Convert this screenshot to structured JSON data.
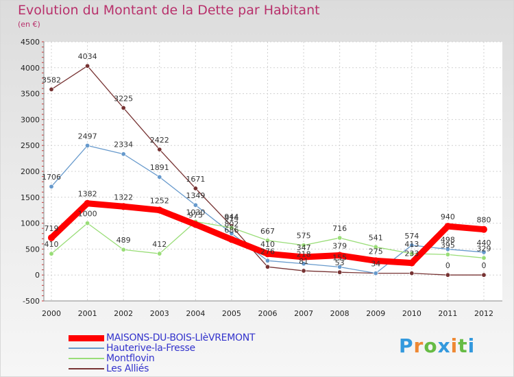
{
  "header": {
    "title": "Evolution du Montant de la Dette par Habitant",
    "subtitle": "(en €)"
  },
  "brand": {
    "name": "Proxiti"
  },
  "colors": {
    "title": "#b8306b",
    "legend_text": "#3333cc",
    "maisons": "#ff0000",
    "hauterive": "#6699cc",
    "montflovin": "#99dd77",
    "allies": "#773333"
  },
  "chart_data": {
    "type": "line",
    "title": "Evolution du Montant de la Dette par Habitant",
    "subtitle": "(en €)",
    "xlabel": "",
    "ylabel": "",
    "x": [
      "2000",
      "2001",
      "2002",
      "2003",
      "2004",
      "2005",
      "2006",
      "2007",
      "2008",
      "2009",
      "2010",
      "2011",
      "2012"
    ],
    "ylim": [
      -500,
      4500
    ],
    "yticks": [
      "-500",
      "0",
      "500",
      "1000",
      "1500",
      "2000",
      "2500",
      "3000",
      "3500",
      "4000",
      "4500"
    ],
    "grid": true,
    "legend_position": "bottom-left",
    "series": [
      {
        "name": "MAISONS-DU-BOIS-LIèVREMONT",
        "color": "#ff0000",
        "values": [
          719,
          1382,
          1322,
          1252,
          975,
          686,
          410,
          347,
          379,
          275,
          233,
          940,
          880
        ],
        "labels": [
          "719",
          "1382",
          "1322",
          "1252",
          "975",
          "686",
          "410",
          "347",
          "379",
          "275",
          "233",
          "940",
          "880"
        ]
      },
      {
        "name": "Hauterive-la-Fresse",
        "color": "#6699cc",
        "values": [
          1706,
          2497,
          2334,
          1891,
          1349,
          802,
          276,
          218,
          155,
          34,
          574,
          498,
          440
        ],
        "labels": [
          "1706",
          "2497",
          "2334",
          "1891",
          "1349",
          "802",
          "276",
          "218",
          "155",
          "34",
          "574",
          "498",
          "440"
        ]
      },
      {
        "name": "Montflovin",
        "color": "#99dd77",
        "values": [
          410,
          1000,
          489,
          412,
          1030,
          914,
          667,
          575,
          716,
          541,
          413,
          395,
          329
        ],
        "labels": [
          "410",
          "1000",
          "489",
          "412",
          "1030",
          "914",
          "667",
          "575",
          "716",
          "541",
          "413",
          "395",
          "329"
        ]
      },
      {
        "name": "Les Alliés",
        "color": "#773333",
        "values": [
          3582,
          4034,
          3225,
          2422,
          1671,
          944,
          157,
          81,
          53,
          34,
          34,
          0,
          0
        ],
        "labels": [
          "3582",
          "4034",
          "3225",
          "2422",
          "1671",
          "944",
          "",
          "81",
          "53",
          "",
          "",
          "0",
          "0"
        ]
      }
    ]
  }
}
